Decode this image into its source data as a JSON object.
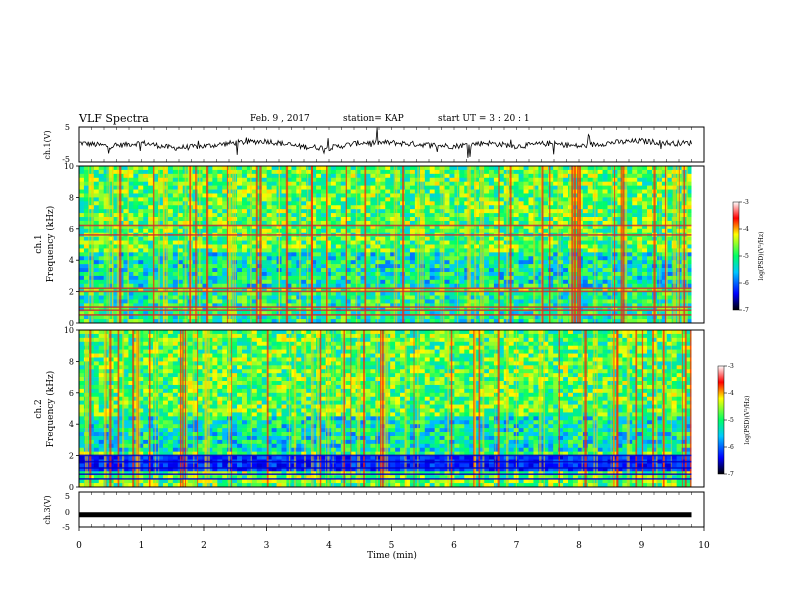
{
  "header": {
    "title": "VLF Spectra",
    "date": "Feb. 9 , 2017",
    "station": "station= KAP",
    "start_ut": "start UT = 3 : 20 : 1"
  },
  "chart_data": [
    {
      "type": "line",
      "panel": "ch1-waveform",
      "ylabel": "ch.1(V)",
      "yticks": [
        "5",
        "-5"
      ],
      "ylim": [
        -5,
        5
      ],
      "xlim": [
        0,
        10
      ],
      "x": [
        0,
        0.5,
        1,
        1.5,
        2,
        2.5,
        3,
        3.5,
        4,
        4.5,
        5,
        5.5,
        6,
        6.5,
        7,
        7.5,
        8,
        8.5,
        9,
        9.5,
        9.8
      ],
      "values": [
        0.5,
        -0.5,
        0.5,
        -1.0,
        -0.5,
        0.5,
        1.0,
        -0.5,
        -1.0,
        0.5,
        0.5,
        0,
        -0.5,
        0.5,
        -0.5,
        0.3,
        -0.5,
        0.5,
        1.0,
        0.3,
        0.5
      ],
      "series_color": "#000000"
    },
    {
      "type": "heatmap",
      "panel": "ch1-spectrogram",
      "ylabel": "ch.1\nFrequency (kHz)",
      "ylabel_line1": "ch.1",
      "ylabel_line2": "Frequency (kHz)",
      "yticks": [
        "0",
        "2",
        "4",
        "6",
        "8",
        "10"
      ],
      "ylim": [
        0,
        10
      ],
      "xlim": [
        0,
        9.8
      ],
      "colorbar": {
        "label": "log(PSD)(V²/Hz)",
        "ticks": [
          "-3",
          "-4",
          "-5",
          "-6",
          "-7"
        ],
        "range": [
          -7,
          -3
        ],
        "colors": [
          "#000000",
          "#0000ff",
          "#00c8ff",
          "#00ff66",
          "#ffff00",
          "#ff0000",
          "#ffffff"
        ]
      },
      "bands_khz": [
        0.5,
        0.8,
        1.0,
        2.0,
        2.2,
        5.6,
        6.2
      ],
      "band_color": "#c83232",
      "note_values": "dominant log PSD ~ -5 (green/yellow), impulsive broadband spikes ~ -3.5 (red)"
    },
    {
      "type": "heatmap",
      "panel": "ch2-spectrogram",
      "ylabel_line1": "ch.2",
      "ylabel_line2": "Frequency (kHz)",
      "yticks": [
        "0",
        "2",
        "4",
        "6",
        "8",
        "10"
      ],
      "ylim": [
        0,
        10
      ],
      "xlim": [
        0,
        9.8
      ],
      "colorbar": {
        "label": "log(PSD)(V²/Hz)",
        "ticks": [
          "-3",
          "-4",
          "-5",
          "-6",
          "-7"
        ],
        "range": [
          -7,
          -3
        ]
      },
      "bands_khz": [
        0.5,
        0.8,
        1.2,
        1.6,
        2.0
      ],
      "band_color": "#0000c8"
    },
    {
      "type": "line",
      "panel": "ch3-waveform",
      "ylabel": "ch.3(V)",
      "yticks": [
        "5",
        "0",
        "-5"
      ],
      "ylim": [
        -5,
        5
      ],
      "xlim": [
        0,
        10
      ],
      "x": [
        0,
        9.8
      ],
      "values": [
        -1.5,
        -1.5
      ],
      "series_color": "#000000",
      "xlabel": "Time (min)",
      "xticks": [
        "0",
        "1",
        "2",
        "3",
        "4",
        "5",
        "6",
        "7",
        "8",
        "9",
        "10"
      ]
    }
  ]
}
